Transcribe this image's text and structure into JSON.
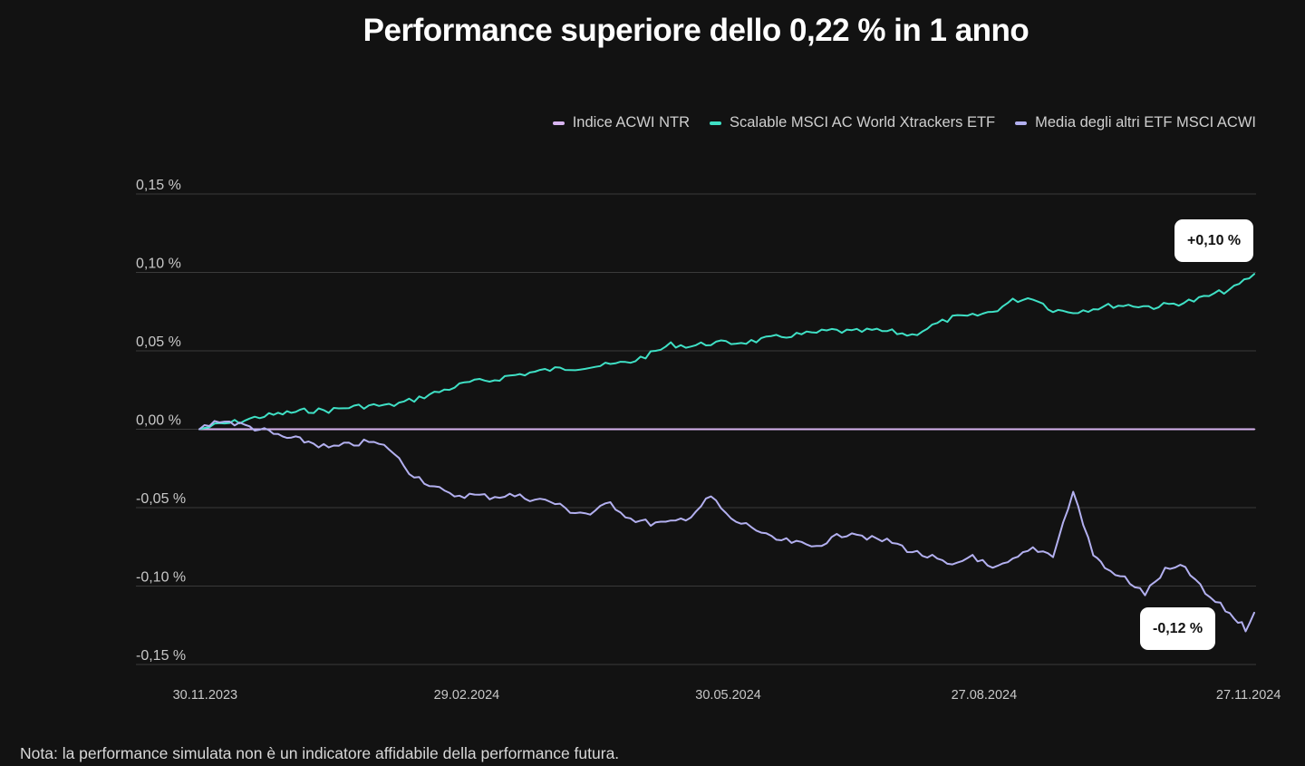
{
  "chart_data": {
    "type": "line",
    "title": "Performance superiore dello 0,22 % in 1 anno",
    "xlabel": "",
    "ylabel": "",
    "ylim": [
      -0.15,
      0.15
    ],
    "y_ticks": [
      0.15,
      0.1,
      0.05,
      0.0,
      -0.05,
      -0.1,
      -0.15
    ],
    "y_tick_labels": [
      "0,15 %",
      "0,10 %",
      "0,05 %",
      "0,00 %",
      "-0,05 %",
      "-0,10 %",
      "-0,15 %"
    ],
    "x_range": [
      "2023-11-28",
      "2024-11-29"
    ],
    "x_ticks": [
      "2023-11-30",
      "2024-02-29",
      "2024-05-30",
      "2024-08-27",
      "2024-11-27"
    ],
    "x_tick_labels": [
      "30.11.2023",
      "29.02.2024",
      "30.05.2024",
      "27.08.2024",
      "27.11.2024"
    ],
    "legend_position": "top-right",
    "series": [
      {
        "name": "Indice ACWI NTR",
        "color": "#d8b4f0",
        "x": [
          "2023-11-28",
          "2024-11-29"
        ],
        "values": [
          0.0,
          0.0
        ]
      },
      {
        "name": "Scalable MSCI AC World Xtrackers ETF",
        "color": "#3fe0c5",
        "x": [
          "2023-11-28",
          "2023-12-05",
          "2023-12-12",
          "2023-12-19",
          "2023-12-27",
          "2024-01-05",
          "2024-01-12",
          "2024-01-19",
          "2024-01-26",
          "2024-02-02",
          "2024-02-09",
          "2024-02-16",
          "2024-02-23",
          "2024-03-01",
          "2024-03-08",
          "2024-03-15",
          "2024-03-22",
          "2024-03-29",
          "2024-04-05",
          "2024-04-12",
          "2024-04-19",
          "2024-04-26",
          "2024-05-03",
          "2024-05-10",
          "2024-05-17",
          "2024-05-24",
          "2024-05-31",
          "2024-06-07",
          "2024-06-14",
          "2024-06-21",
          "2024-06-28",
          "2024-07-05",
          "2024-07-12",
          "2024-07-19",
          "2024-07-26",
          "2024-08-02",
          "2024-08-09",
          "2024-08-16",
          "2024-08-23",
          "2024-08-30",
          "2024-09-06",
          "2024-09-13",
          "2024-09-20",
          "2024-09-27",
          "2024-10-04",
          "2024-10-11",
          "2024-10-18",
          "2024-10-25",
          "2024-11-01",
          "2024-11-08",
          "2024-11-15",
          "2024-11-22",
          "2024-11-29"
        ],
        "values": [
          0.0,
          0.003,
          0.005,
          0.008,
          0.01,
          0.012,
          0.012,
          0.014,
          0.015,
          0.015,
          0.018,
          0.022,
          0.026,
          0.03,
          0.031,
          0.034,
          0.036,
          0.038,
          0.039,
          0.04,
          0.041,
          0.043,
          0.048,
          0.054,
          0.053,
          0.055,
          0.055,
          0.056,
          0.058,
          0.06,
          0.061,
          0.063,
          0.062,
          0.063,
          0.062,
          0.06,
          0.066,
          0.071,
          0.072,
          0.075,
          0.082,
          0.084,
          0.076,
          0.075,
          0.077,
          0.079,
          0.079,
          0.078,
          0.08,
          0.082,
          0.086,
          0.09,
          0.099
        ]
      },
      {
        "name": "Media degli altri ETF MSCI ACWI",
        "color": "#b3b0f0",
        "x": [
          "2023-11-28",
          "2023-12-05",
          "2023-12-12",
          "2023-12-19",
          "2023-12-27",
          "2024-01-05",
          "2024-01-12",
          "2024-01-19",
          "2024-01-26",
          "2024-02-02",
          "2024-02-09",
          "2024-02-16",
          "2024-02-23",
          "2024-03-01",
          "2024-03-08",
          "2024-03-15",
          "2024-03-22",
          "2024-03-29",
          "2024-04-05",
          "2024-04-12",
          "2024-04-19",
          "2024-04-26",
          "2024-05-03",
          "2024-05-10",
          "2024-05-17",
          "2024-05-24",
          "2024-05-31",
          "2024-06-07",
          "2024-06-14",
          "2024-06-21",
          "2024-06-28",
          "2024-07-05",
          "2024-07-12",
          "2024-07-19",
          "2024-07-26",
          "2024-08-02",
          "2024-08-09",
          "2024-08-16",
          "2024-08-23",
          "2024-08-30",
          "2024-09-06",
          "2024-09-13",
          "2024-09-20",
          "2024-09-27",
          "2024-10-04",
          "2024-10-08",
          "2024-10-10",
          "2024-10-15",
          "2024-10-22",
          "2024-10-29",
          "2024-11-05",
          "2024-11-12",
          "2024-11-19",
          "2024-11-22",
          "2024-11-26",
          "2024-11-29"
        ],
        "values": [
          0.0,
          0.006,
          0.003,
          0.0,
          -0.005,
          -0.008,
          -0.012,
          -0.01,
          -0.008,
          -0.012,
          -0.027,
          -0.035,
          -0.042,
          -0.042,
          -0.043,
          -0.042,
          -0.044,
          -0.046,
          -0.052,
          -0.054,
          -0.047,
          -0.057,
          -0.06,
          -0.06,
          -0.055,
          -0.043,
          -0.058,
          -0.062,
          -0.07,
          -0.072,
          -0.075,
          -0.07,
          -0.065,
          -0.07,
          -0.072,
          -0.078,
          -0.082,
          -0.088,
          -0.08,
          -0.09,
          -0.084,
          -0.076,
          -0.08,
          -0.04,
          -0.08,
          -0.087,
          -0.092,
          -0.095,
          -0.105,
          -0.09,
          -0.088,
          -0.105,
          -0.115,
          -0.12,
          -0.127,
          -0.117
        ]
      }
    ],
    "annotations": [
      {
        "text": "+0,10 %",
        "series": "Scalable MSCI AC World Xtrackers ETF",
        "position": "above-end"
      },
      {
        "text": "-0,12 %",
        "series": "Media degli altri ETF MSCI ACWI",
        "position": "below-end"
      }
    ]
  },
  "footnote": "Nota: la performance simulata non è un indicatore affidabile della performance futura."
}
